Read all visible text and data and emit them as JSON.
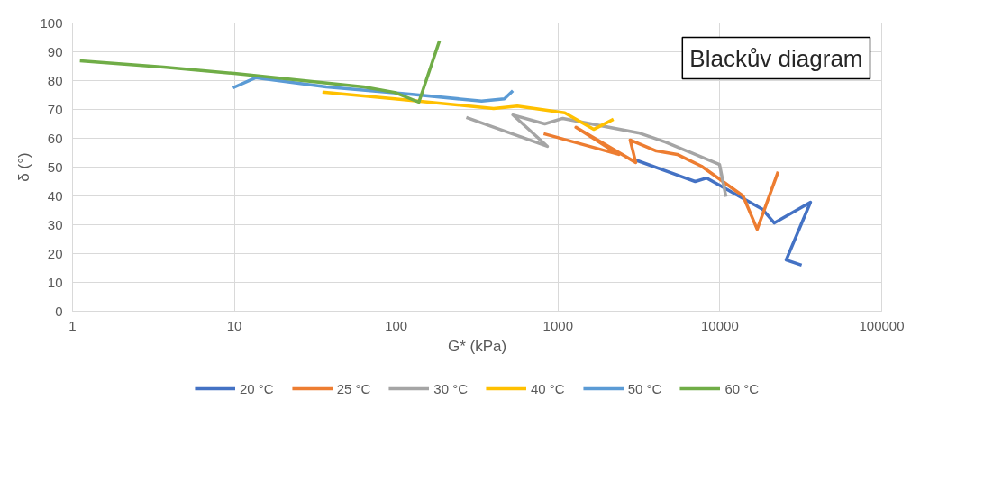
{
  "chart_data": {
    "type": "line",
    "title": "Blackův diagram",
    "xlabel": "G* (kPa)",
    "ylabel": "δ (°)",
    "log": "x",
    "xlim": [
      1,
      100000
    ],
    "xticks": [
      1,
      10,
      100,
      1000,
      10000,
      100000
    ],
    "ylim": [
      0,
      100
    ],
    "yticks": [
      0,
      10,
      20,
      30,
      40,
      50,
      60,
      70,
      80,
      90,
      100
    ],
    "grid": true,
    "legend": "bottom",
    "marker": "none",
    "line_style": "solid",
    "series": [
      {
        "name": "20 °C",
        "color": "#4472c4",
        "x": [
          3000,
          5000,
          7040,
          8300,
          18400,
          21700,
          36300,
          25700,
          32000
        ],
        "values": [
          52.5,
          48,
          45,
          46.2,
          35.3,
          30.6,
          37.8,
          17.8,
          16
        ]
      },
      {
        "name": "25 °C",
        "color": "#ed7d31",
        "x": [
          815,
          2370,
          1290,
          3020,
          2790,
          4050,
          5450,
          7700,
          13900,
          17000,
          22900
        ],
        "values": [
          61.6,
          54.4,
          63.8,
          51.6,
          59.4,
          55.6,
          54.4,
          50.3,
          40,
          28.4,
          48.4
        ]
      },
      {
        "name": "30 °C",
        "color": "#a5a5a5",
        "x": [
          271,
          859,
          526,
          828,
          1070,
          3140,
          4600,
          9950,
          10900
        ],
        "values": [
          67.2,
          57.2,
          68.1,
          65,
          66.9,
          61.9,
          58.7,
          50.9,
          39.7
        ]
      },
      {
        "name": "40 °C",
        "color": "#ffc000",
        "x": [
          35,
          98,
          400,
          560,
          1100,
          1660,
          2200
        ],
        "values": [
          76,
          73.7,
          70.3,
          71.2,
          68.8,
          63.1,
          66.6
        ]
      },
      {
        "name": "50 °C",
        "color": "#5b9bd5",
        "x": [
          9.8,
          13.5,
          37,
          121,
          337,
          466,
          526
        ],
        "values": [
          77.5,
          81,
          77.8,
          75.3,
          72.9,
          73.7,
          76.5
        ]
      },
      {
        "name": "60 °C",
        "color": "#70ad47",
        "x": [
          1.11,
          3.65,
          10,
          63,
          98,
          138,
          185
        ],
        "values": [
          86.9,
          84.7,
          82.5,
          77.8,
          75.9,
          72.5,
          93.8
        ]
      }
    ]
  }
}
